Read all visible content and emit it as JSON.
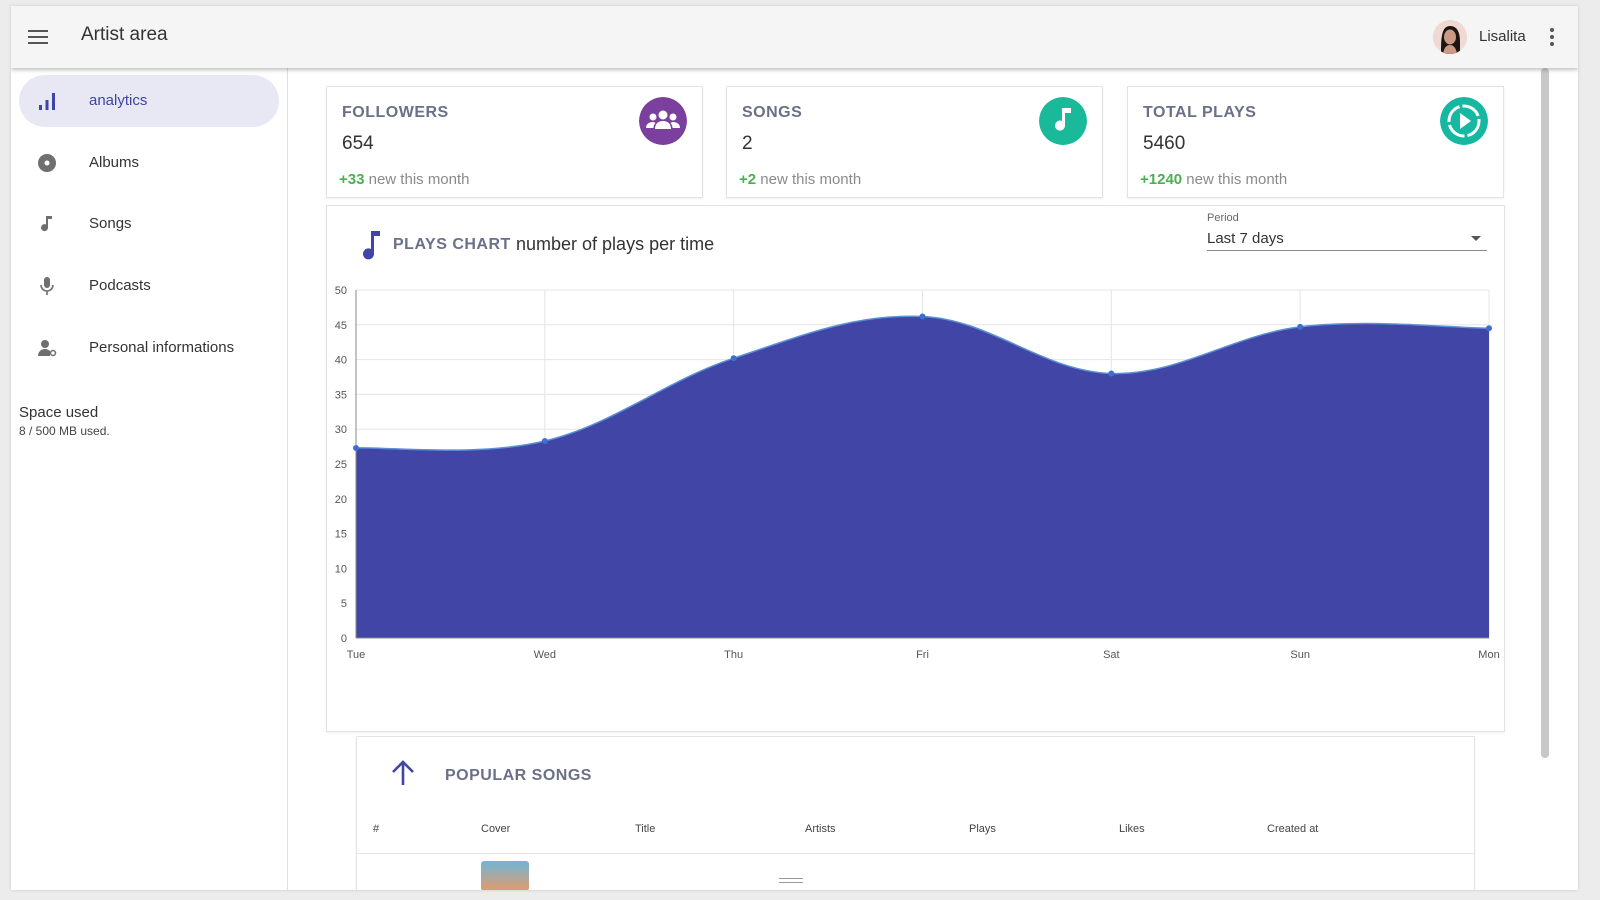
{
  "header": {
    "title": "Artist area",
    "user_name": "Lisalita"
  },
  "sidebar": {
    "items": [
      {
        "label": "analytics",
        "icon": "bar-chart-icon",
        "active": true
      },
      {
        "label": "Albums",
        "icon": "album-icon",
        "active": false
      },
      {
        "label": "Songs",
        "icon": "music-note-icon",
        "active": false
      },
      {
        "label": "Podcasts",
        "icon": "microphone-icon",
        "active": false
      },
      {
        "label": "Personal informations",
        "icon": "person-settings-icon",
        "active": false
      }
    ],
    "space": {
      "title": "Space used",
      "detail": "8 / 500 MB used."
    }
  },
  "stats": [
    {
      "title": "FOLLOWERS",
      "value": "654",
      "delta": "+33",
      "delta_suffix": " new this month",
      "icon": "group-icon",
      "color": "#7b3f9e"
    },
    {
      "title": "SONGS",
      "value": "2",
      "delta": "+2",
      "delta_suffix": " new this month",
      "icon": "music-note-icon",
      "color": "#1ab99a"
    },
    {
      "title": "TOTAL PLAYS",
      "value": "5460",
      "delta": "+1240",
      "delta_suffix": " new this month",
      "icon": "play-circle-icon",
      "color": "#16b8a2"
    }
  ],
  "chart_section": {
    "title": "PLAYS CHART",
    "subtitle": "number of plays per time",
    "period_label": "Period",
    "period_value": "Last 7 days"
  },
  "chart_data": {
    "type": "area",
    "categories": [
      "Tue",
      "Wed",
      "Thu",
      "Fri",
      "Sat",
      "Sun",
      "Mon"
    ],
    "values": [
      27.3,
      28.3,
      40.2,
      46.2,
      38,
      44.7,
      44.5
    ],
    "yticks": [
      0,
      5,
      10,
      15,
      20,
      25,
      30,
      35,
      40,
      45,
      50
    ],
    "ylim": [
      0,
      50
    ],
    "grid": true,
    "fill_color": "#4045a6",
    "line_color": "#5b8fd6"
  },
  "popular_songs": {
    "title": "POPULAR SONGS",
    "columns": [
      "#",
      "Cover",
      "Title",
      "Artists",
      "Plays",
      "Likes",
      "Created at"
    ]
  }
}
